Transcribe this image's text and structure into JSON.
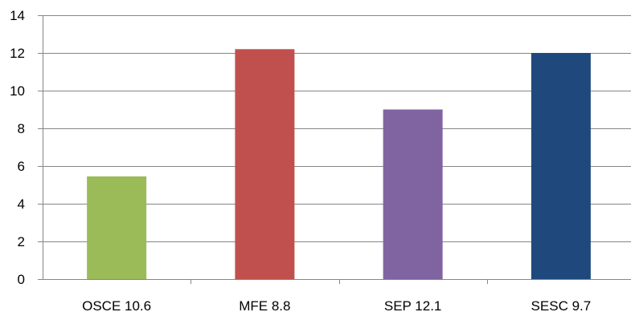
{
  "chart_data": {
    "type": "bar",
    "title": "",
    "xlabel": "",
    "ylabel": "",
    "categories": [
      "OSCE 10.6",
      "MFE 8.8",
      "SEP 12.1",
      "SESC 9.7"
    ],
    "values": [
      5.45,
      12.2,
      9.0,
      12.0
    ],
    "colors": [
      "#9BBB59",
      "#C0504D",
      "#8064A2",
      "#1F497D"
    ],
    "ylim": [
      0,
      14
    ],
    "yticks": [
      0,
      2,
      4,
      6,
      8,
      10,
      12,
      14
    ],
    "grid": "horizontal",
    "legend": "none"
  }
}
